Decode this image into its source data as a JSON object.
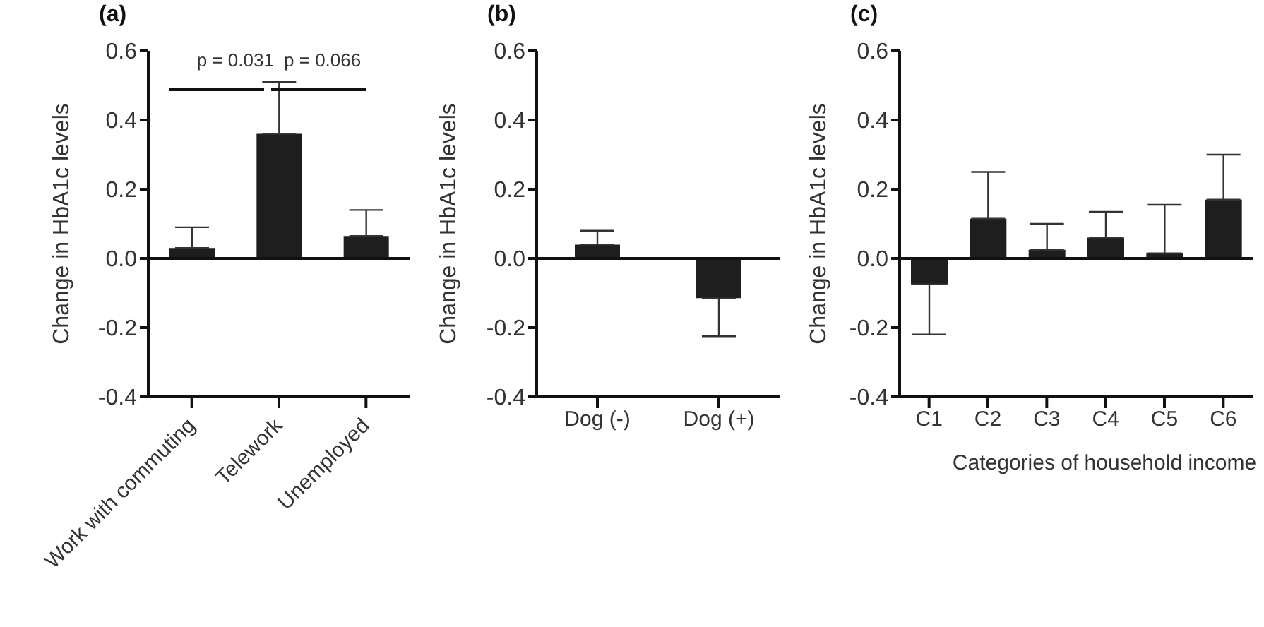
{
  "chart_data": [
    {
      "type": "bar",
      "title": "(a)",
      "ylabel": "Change in HbA1c levels",
      "categories": [
        "Work with commuting",
        "Telework",
        "Unemployed"
      ],
      "values": [
        0.03,
        0.36,
        0.065
      ],
      "errors": [
        [
          0.03,
          0.09
        ],
        [
          0.36,
          0.51
        ],
        [
          0.065,
          0.14
        ]
      ],
      "color": "#1e1e1e",
      "ylim": [
        -0.4,
        0.6
      ],
      "yticks": [
        {
          "value": -0.4,
          "label": "-0.4"
        },
        {
          "value": -0.2,
          "label": "-0.2"
        },
        {
          "value": 0,
          "label": "0.0"
        },
        {
          "value": 0.2,
          "label": "0.2"
        },
        {
          "value": 0.4,
          "label": "0.4"
        },
        {
          "value": 0.6,
          "label": "0.6"
        }
      ],
      "ref_lines": [
        {
          "axis": "y",
          "value": 0
        }
      ],
      "annotations": [
        "p = 0.031",
        "p = 0.066"
      ],
      "grid": false,
      "legend": false
    },
    {
      "type": "bar",
      "title": "(b)",
      "ylabel": "Change in HbA1c levels",
      "categories": [
        "Dog (-)",
        "Dog (+)"
      ],
      "values": [
        0.04,
        -0.115
      ],
      "errors": [
        [
          0.04,
          0.08
        ],
        [
          -0.225,
          -0.115
        ]
      ],
      "color": "#1e1e1e",
      "ylim": [
        -0.4,
        0.6
      ],
      "yticks": [
        {
          "value": -0.4,
          "label": "-0.4"
        },
        {
          "value": -0.2,
          "label": "-0.2"
        },
        {
          "value": 0,
          "label": "0.0"
        },
        {
          "value": 0.2,
          "label": "0.2"
        },
        {
          "value": 0.4,
          "label": "0.4"
        },
        {
          "value": 0.6,
          "label": "0.6"
        }
      ],
      "ref_lines": [
        {
          "axis": "y",
          "value": 0
        }
      ],
      "grid": false,
      "legend": false
    },
    {
      "type": "bar",
      "title": "(c)",
      "ylabel": "Change in HbA1c levels",
      "xlabel": "Categories of household income",
      "categories": [
        "C1",
        "C2",
        "C3",
        "C4",
        "C5",
        "C6"
      ],
      "values": [
        -0.075,
        0.115,
        0.025,
        0.06,
        0.015,
        0.17
      ],
      "errors": [
        [
          -0.22,
          -0.075
        ],
        [
          0.115,
          0.25
        ],
        [
          0.025,
          0.1
        ],
        [
          0.06,
          0.135
        ],
        [
          0.015,
          0.155
        ],
        [
          0.17,
          0.3
        ]
      ],
      "color": "#1e1e1e",
      "ylim": [
        -0.4,
        0.6
      ],
      "yticks": [
        {
          "value": -0.4,
          "label": "-0.4"
        },
        {
          "value": -0.2,
          "label": "-0.2"
        },
        {
          "value": 0,
          "label": "0.0"
        },
        {
          "value": 0.2,
          "label": "0.2"
        },
        {
          "value": 0.4,
          "label": "0.4"
        },
        {
          "value": 0.6,
          "label": "0.6"
        }
      ],
      "ref_lines": [
        {
          "axis": "y",
          "value": 0
        }
      ],
      "grid": false,
      "legend": false
    }
  ]
}
